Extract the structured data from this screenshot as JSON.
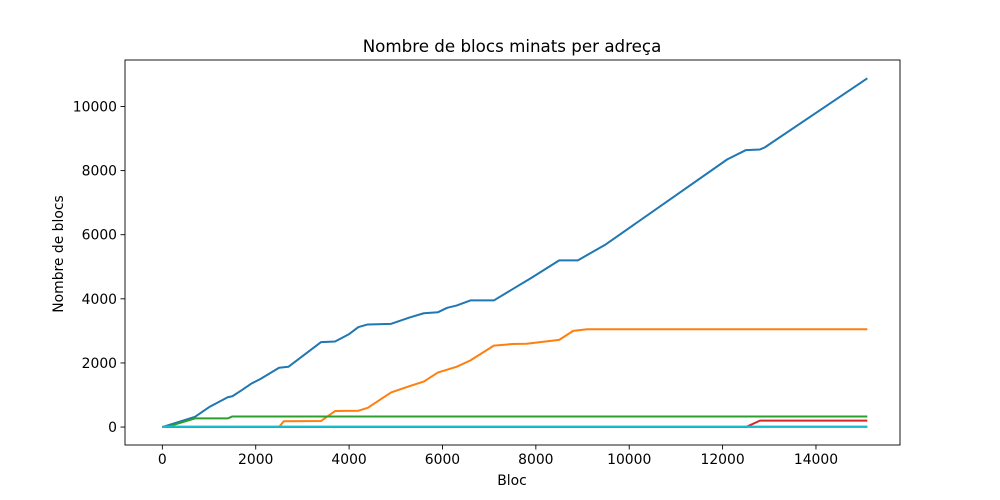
{
  "chart_data": {
    "type": "line",
    "title": "Nombre de blocs minats per adreça",
    "xlabel": "Bloc",
    "ylabel": "Nombre de blocs",
    "xlim": [
      -800,
      15800
    ],
    "ylim": [
      -560,
      11450
    ],
    "xticks": [
      0,
      2000,
      4000,
      6000,
      8000,
      10000,
      12000,
      14000
    ],
    "yticks": [
      0,
      2000,
      4000,
      6000,
      8000,
      10000
    ],
    "grid": false,
    "series": [
      {
        "color": "#1f77b4",
        "x": [
          0,
          700,
          1000,
          1400,
          1500,
          1700,
          1900,
          2100,
          2500,
          2700,
          3400,
          3700,
          4000,
          4200,
          4400,
          4900,
          5300,
          5600,
          5900,
          6100,
          6300,
          6600,
          7100,
          7500,
          7900,
          8500,
          8900,
          9500,
          12100,
          12500,
          12800,
          12900,
          15100
        ],
        "y": [
          0,
          320,
          620,
          930,
          960,
          1150,
          1350,
          1500,
          1850,
          1880,
          2650,
          2670,
          2900,
          3120,
          3200,
          3220,
          3420,
          3550,
          3580,
          3720,
          3790,
          3950,
          3950,
          4300,
          4650,
          5200,
          5200,
          5700,
          8350,
          8640,
          8660,
          8720,
          10880
        ]
      },
      {
        "color": "#ff7f0e",
        "x": [
          0,
          2500,
          2600,
          3400,
          3700,
          4200,
          4400,
          4900,
          5300,
          5600,
          5900,
          6300,
          6600,
          7100,
          7500,
          7800,
          8500,
          8800,
          9100,
          15100
        ],
        "y": [
          0,
          0,
          180,
          190,
          500,
          510,
          600,
          1080,
          1280,
          1420,
          1700,
          1880,
          2080,
          2540,
          2590,
          2600,
          2720,
          3000,
          3050,
          3050
        ]
      },
      {
        "color": "#2ca02c",
        "x": [
          0,
          200,
          700,
          1400,
          1500,
          15100
        ],
        "y": [
          0,
          50,
          270,
          270,
          330,
          330
        ]
      },
      {
        "color": "#d62728",
        "x": [
          0,
          12500,
          12800,
          15100
        ],
        "y": [
          0,
          0,
          200,
          200
        ]
      },
      {
        "color": "#9467bd",
        "x": [
          0,
          15100
        ],
        "y": [
          5,
          5
        ]
      },
      {
        "color": "#17becf",
        "x": [
          0,
          15100
        ],
        "y": [
          12,
          12
        ]
      }
    ]
  }
}
